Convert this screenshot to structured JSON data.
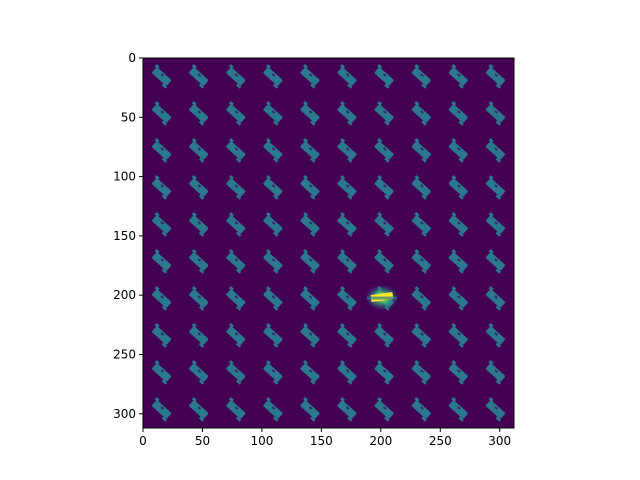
{
  "chart_data": {
    "type": "heatmap",
    "title": "",
    "xlabel": "",
    "ylabel": "",
    "colormap": "viridis",
    "image_extent": {
      "x": [
        0,
        312
      ],
      "y": [
        0,
        312
      ]
    },
    "xlim": [
      0,
      312
    ],
    "ylim": [
      312,
      0
    ],
    "y_inverted": true,
    "grid": false,
    "x_ticks": [
      0,
      50,
      100,
      150,
      200,
      250,
      300
    ],
    "x_tick_labels": [
      "0",
      "50",
      "100",
      "150",
      "200",
      "250",
      "300"
    ],
    "y_ticks": [
      0,
      50,
      100,
      150,
      200,
      250,
      300
    ],
    "y_tick_labels": [
      "0",
      "50",
      "100",
      "150",
      "200",
      "250",
      "300"
    ],
    "tile_grid": {
      "rows": 10,
      "cols": 10,
      "tile_size": 31.2
    },
    "background_value": 0.0,
    "pattern_value": 0.35,
    "hotspot": {
      "x": 201,
      "y": 202,
      "value": 1.0
    },
    "colors": {
      "background": "#440154",
      "pattern": "#2a788e",
      "glow": "#21918c",
      "hotspot": "#fde725"
    }
  }
}
